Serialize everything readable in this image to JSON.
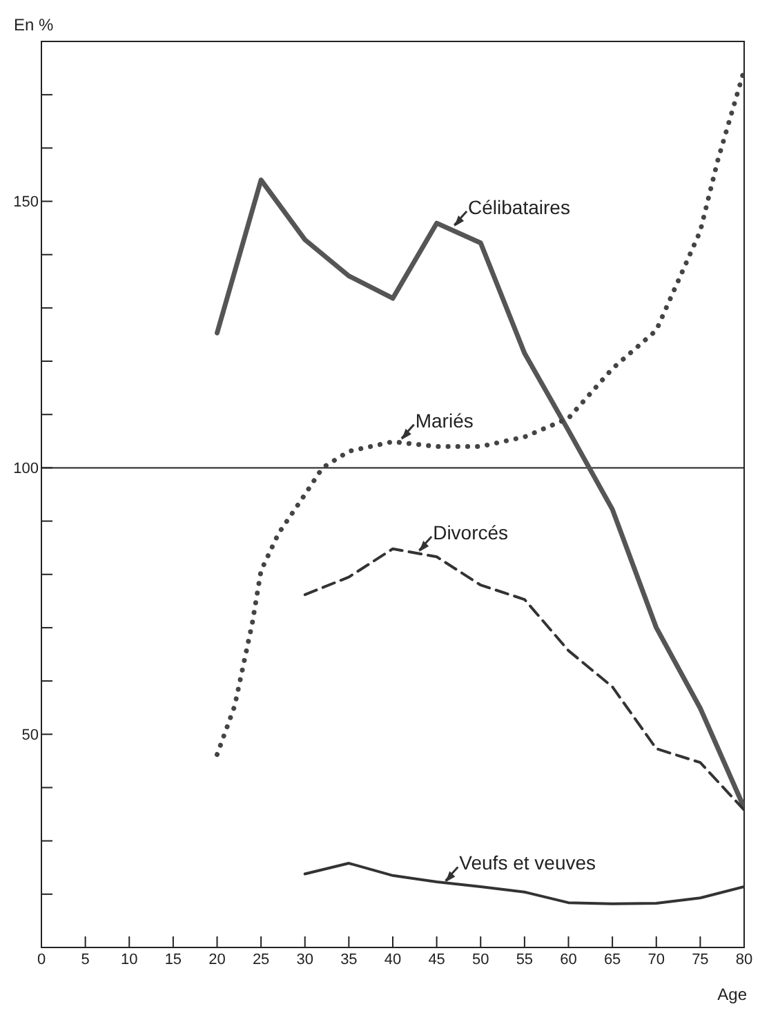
{
  "chart_data": {
    "type": "line",
    "ylabel": "En %",
    "xlabel": "Age",
    "xlim": [
      0,
      80
    ],
    "xticks": [
      0,
      5,
      10,
      15,
      20,
      25,
      30,
      35,
      40,
      45,
      50,
      55,
      60,
      65,
      70,
      75,
      80
    ],
    "ylim": [
      10,
      180
    ],
    "yticks": [
      {
        "value": 20,
        "label": null
      },
      {
        "value": 30,
        "label": null
      },
      {
        "value": 40,
        "label": null
      },
      50,
      {
        "value": 60,
        "label": null
      },
      {
        "value": 70,
        "label": null
      },
      {
        "value": 80,
        "label": null
      },
      {
        "value": 90,
        "label": null
      },
      100,
      {
        "value": 110,
        "label": null
      },
      {
        "value": 120,
        "label": null
      },
      {
        "value": 130,
        "label": null
      },
      {
        "value": 140,
        "label": null
      },
      150,
      {
        "value": 160,
        "label": null
      },
      {
        "value": 170,
        "label": null
      }
    ],
    "grid": false,
    "marker": "none",
    "ref_lines": [
      {
        "axis": "y",
        "value": 100,
        "color": "#222222"
      }
    ],
    "series": [
      {
        "color": "#555555",
        "line_style": "solid",
        "x": [
          20,
          25,
          30,
          35,
          40,
          45,
          50,
          55,
          60,
          65,
          70,
          75,
          80
        ],
        "values": [
          125.3,
          154,
          142.8,
          136,
          131.8,
          145.9,
          142.2,
          121.5,
          107,
          92.2,
          70,
          54.9,
          36.2
        ]
      },
      {
        "color": "#444444",
        "line_style": "dotted",
        "x": [
          20,
          22,
          24,
          25,
          27,
          30,
          32,
          35,
          40,
          45,
          50,
          55,
          60,
          65,
          70,
          75,
          77,
          80
        ],
        "values": [
          46.2,
          55.3,
          70.8,
          80.7,
          87.7,
          95,
          100,
          103.1,
          104.9,
          104,
          104,
          105.8,
          109.3,
          118.6,
          125.8,
          144.4,
          157.7,
          174.6
        ]
      },
      {
        "color": "#333333",
        "line_style": "dashed",
        "x": [
          30,
          35,
          40,
          45,
          50,
          55,
          60,
          65,
          70,
          75,
          80
        ],
        "values": [
          76.2,
          79.5,
          84.8,
          83.3,
          78,
          75.3,
          65.7,
          58.9,
          47.3,
          44.7,
          35.8
        ]
      },
      {
        "color": "#333333",
        "line_style": "solid",
        "x": [
          30,
          35,
          40,
          45,
          50,
          55,
          60,
          65,
          70,
          75,
          80
        ],
        "values": [
          23.8,
          25.8,
          23.5,
          22.3,
          21.4,
          20.4,
          18.4,
          18.2,
          18.3,
          19.3,
          21.4
        ]
      }
    ],
    "annotations": [
      {
        "text": "Célibataires",
        "x": 47,
        "y": 145
      },
      {
        "text": "Mariés",
        "x": 41,
        "y": 105
      },
      {
        "text": "Divorcés",
        "x": 43,
        "y": 84
      },
      {
        "text": "Veufs et veuves",
        "x": 46,
        "y": 22
      }
    ]
  }
}
